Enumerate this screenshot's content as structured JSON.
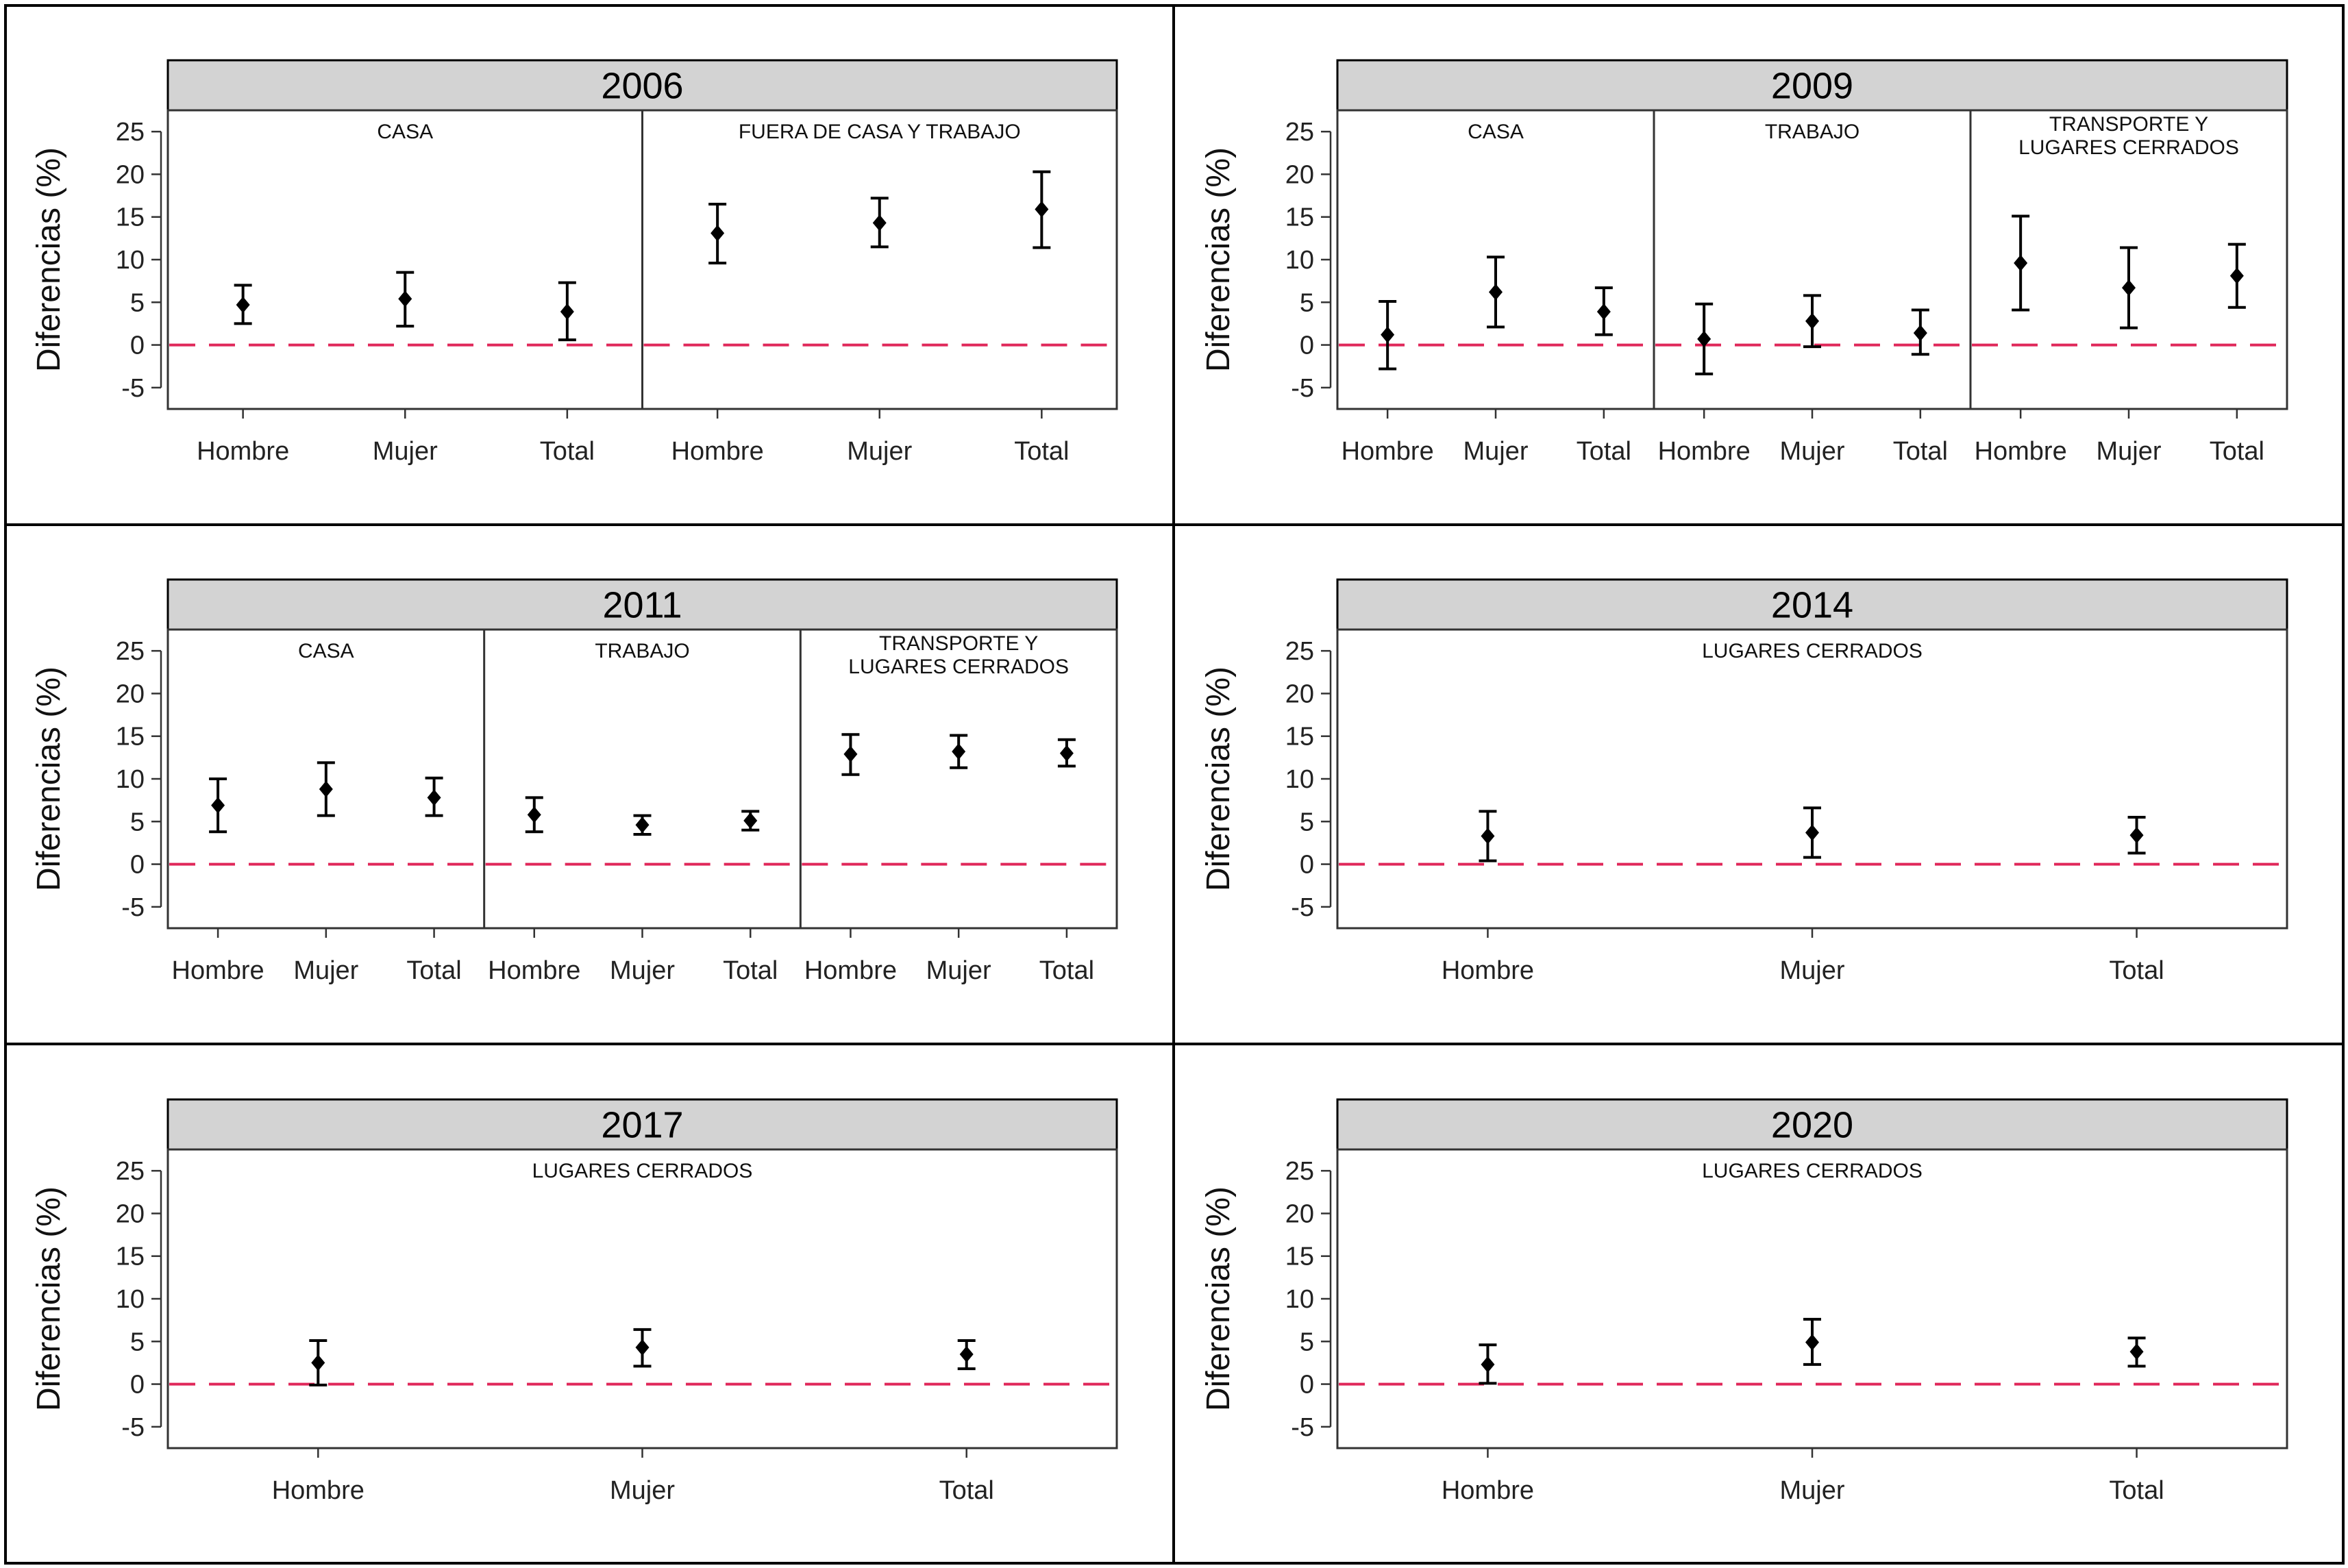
{
  "colors": {
    "strip_background": "#d3d3d3",
    "reference_line": "#e0285a",
    "marker": "#000000",
    "frame": "#000000",
    "panel_border": "#333333"
  },
  "chart_data": [
    {
      "type": "errorbar",
      "title": "2006",
      "ylabel": "Diferencias (%)",
      "ylim": [
        -7.5,
        27.5
      ],
      "yticks": [
        "25",
        "20",
        "15",
        "10",
        "5",
        "0",
        "-5"
      ],
      "reference_y": 0,
      "facets": [
        {
          "label": "CASA",
          "categories": [
            "Hombre",
            "Mujer",
            "Total"
          ],
          "estimates": [
            4.7,
            5.4,
            3.9
          ],
          "lower": [
            2.5,
            2.2,
            0.6
          ],
          "upper": [
            7.0,
            8.5,
            7.3
          ]
        },
        {
          "label": "FUERA DE CASA Y TRABAJO",
          "categories": [
            "Hombre",
            "Mujer",
            "Total"
          ],
          "estimates": [
            13.1,
            14.3,
            15.9
          ],
          "lower": [
            9.6,
            11.5,
            11.4
          ],
          "upper": [
            16.5,
            17.2,
            20.3
          ]
        }
      ]
    },
    {
      "type": "errorbar",
      "title": "2009",
      "ylabel": "Diferencias (%)",
      "ylim": [
        -7.5,
        27.5
      ],
      "yticks": [
        "25",
        "20",
        "15",
        "10",
        "5",
        "0",
        "-5"
      ],
      "reference_y": 0,
      "facets": [
        {
          "label": "CASA",
          "categories": [
            "Hombre",
            "Mujer",
            "Total"
          ],
          "estimates": [
            1.2,
            6.2,
            3.9
          ],
          "lower": [
            -2.8,
            2.1,
            1.2
          ],
          "upper": [
            5.1,
            10.3,
            6.7
          ]
        },
        {
          "label": "TRABAJO",
          "categories": [
            "Hombre",
            "Mujer",
            "Total"
          ],
          "estimates": [
            0.7,
            2.8,
            1.4
          ],
          "lower": [
            -3.4,
            -0.2,
            -1.1
          ],
          "upper": [
            4.8,
            5.8,
            4.1
          ]
        },
        {
          "label": "TRANSPORTE Y LUGARES CERRADOS",
          "categories": [
            "Hombre",
            "Mujer",
            "Total"
          ],
          "estimates": [
            9.6,
            6.7,
            8.1
          ],
          "lower": [
            4.1,
            2.0,
            4.4
          ],
          "upper": [
            15.1,
            11.4,
            11.8
          ]
        }
      ]
    },
    {
      "type": "errorbar",
      "title": "2011",
      "ylabel": "Diferencias (%)",
      "ylim": [
        -7.5,
        27.5
      ],
      "yticks": [
        "25",
        "20",
        "15",
        "10",
        "5",
        "0",
        "-5"
      ],
      "reference_y": 0,
      "facets": [
        {
          "label": "CASA",
          "categories": [
            "Hombre",
            "Mujer",
            "Total"
          ],
          "estimates": [
            6.9,
            8.8,
            7.8
          ],
          "lower": [
            3.8,
            5.7,
            5.7
          ],
          "upper": [
            10.0,
            11.9,
            10.1
          ]
        },
        {
          "label": "TRABAJO",
          "categories": [
            "Hombre",
            "Mujer",
            "Total"
          ],
          "estimates": [
            5.8,
            4.6,
            5.1
          ],
          "lower": [
            3.8,
            3.5,
            4.0
          ],
          "upper": [
            7.8,
            5.7,
            6.2
          ]
        },
        {
          "label": "TRANSPORTE Y LUGARES CERRADOS",
          "categories": [
            "Hombre",
            "Mujer",
            "Total"
          ],
          "estimates": [
            12.9,
            13.2,
            13.0
          ],
          "lower": [
            10.5,
            11.3,
            11.5
          ],
          "upper": [
            15.2,
            15.1,
            14.6
          ]
        }
      ]
    },
    {
      "type": "errorbar",
      "title": "2014",
      "ylabel": "Diferencias (%)",
      "ylim": [
        -7.5,
        27.5
      ],
      "yticks": [
        "25",
        "20",
        "15",
        "10",
        "5",
        "0",
        "-5"
      ],
      "reference_y": 0,
      "facets": [
        {
          "label": "LUGARES CERRADOS",
          "categories": [
            "Hombre",
            "Mujer",
            "Total"
          ],
          "estimates": [
            3.3,
            3.7,
            3.4
          ],
          "lower": [
            0.4,
            0.8,
            1.3
          ],
          "upper": [
            6.2,
            6.6,
            5.5
          ]
        }
      ]
    },
    {
      "type": "errorbar",
      "title": "2017",
      "ylabel": "Diferencias (%)",
      "ylim": [
        -7.5,
        27.5
      ],
      "yticks": [
        "25",
        "20",
        "15",
        "10",
        "5",
        "0",
        "-5"
      ],
      "reference_y": 0,
      "facets": [
        {
          "label": "LUGARES CERRADOS",
          "categories": [
            "Hombre",
            "Mujer",
            "Total"
          ],
          "estimates": [
            2.5,
            4.3,
            3.5
          ],
          "lower": [
            -0.1,
            2.1,
            1.8
          ],
          "upper": [
            5.1,
            6.4,
            5.1
          ]
        }
      ]
    },
    {
      "type": "errorbar",
      "title": "2020",
      "ylabel": "Diferencias (%)",
      "ylim": [
        -7.5,
        27.5
      ],
      "yticks": [
        "25",
        "20",
        "15",
        "10",
        "5",
        "0",
        "-5"
      ],
      "reference_y": 0,
      "facets": [
        {
          "label": "LUGARES CERRADOS",
          "categories": [
            "Hombre",
            "Mujer",
            "Total"
          ],
          "estimates": [
            2.3,
            4.9,
            3.8
          ],
          "lower": [
            0.1,
            2.3,
            2.1
          ],
          "upper": [
            4.6,
            7.6,
            5.4
          ]
        }
      ]
    }
  ]
}
